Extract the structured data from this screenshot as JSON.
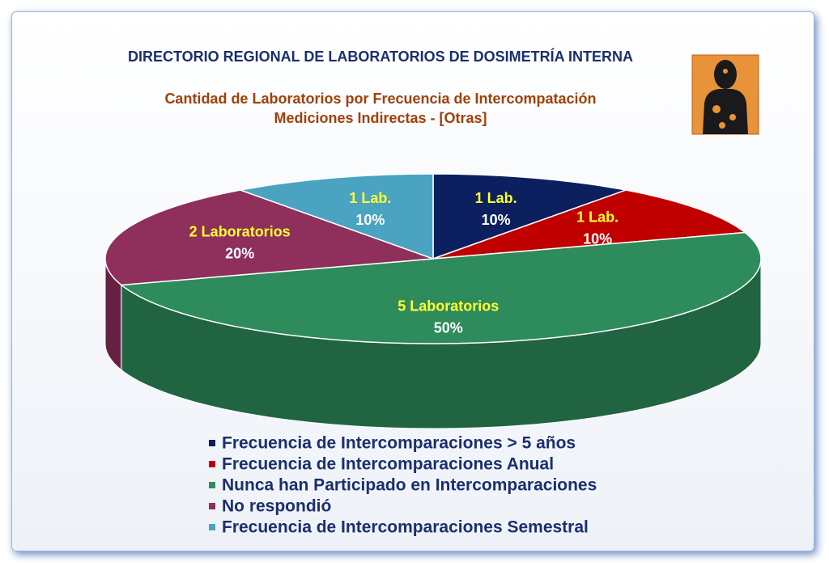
{
  "chart_data": {
    "type": "pie3d",
    "title": "DIRECTORIO REGIONAL DE LABORATORIOS DE DOSIMETRÍA INTERNA",
    "subtitle_lines": [
      "Cantidad de Laboratorios  por Frecuencia de Intercompatación",
      "Mediciones Indirectas - [Otras]"
    ],
    "categories": [
      "Frecuencia de Intercomparaciones > 5 años",
      "Frecuencia de Intercomparaciones Anual",
      "Nunca han Participado en Intercomparaciones",
      "No respondió",
      "Frecuencia de Intercomparaciones Semestral"
    ],
    "values": [
      10,
      10,
      50,
      20,
      10
    ],
    "value_labels": [
      "10%",
      "10%",
      "50%",
      "20%",
      "10%"
    ],
    "count_labels": [
      "1 Lab.",
      "1 Lab.",
      "5 Laboratorios",
      "2 Laboratorios",
      "1 Lab."
    ],
    "colors": [
      "#0c1f5e",
      "#c00000",
      "#2e8b5c",
      "#8e2f5c",
      "#4aa3c0"
    ]
  }
}
